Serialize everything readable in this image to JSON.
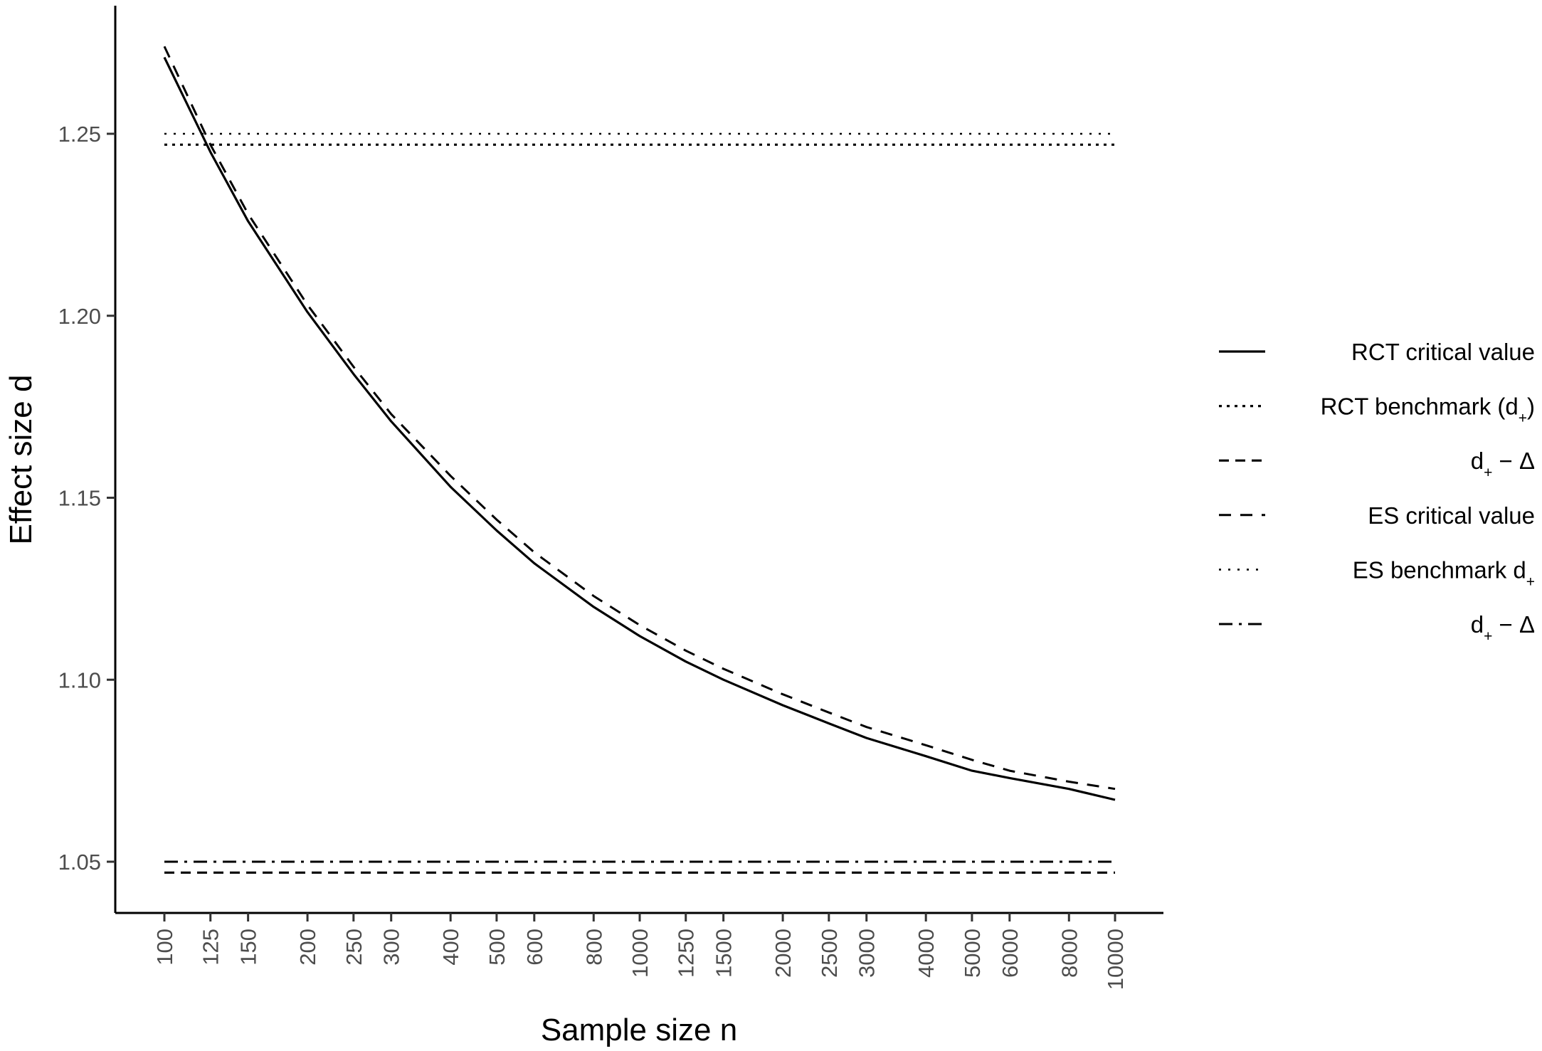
{
  "chart_data": {
    "type": "line",
    "title": "",
    "xlabel": "Sample size n",
    "ylabel": "Effect size d",
    "x_scale": "log",
    "xlim": [
      85,
      14000
    ],
    "ylim": [
      1.036,
      1.285
    ],
    "x_ticks": [
      100,
      125,
      150,
      200,
      250,
      300,
      400,
      500,
      600,
      800,
      1000,
      1250,
      1500,
      2000,
      2500,
      3000,
      4000,
      5000,
      6000,
      8000,
      10000
    ],
    "x_tick_labels": [
      "100",
      "125",
      "150",
      "200",
      "250",
      "300",
      "400",
      "500",
      "600",
      "800",
      "1000",
      "1250",
      "1500",
      "2000",
      "2500",
      "3000",
      "4000",
      "5000",
      "6000",
      "8000",
      "10000"
    ],
    "y_ticks": [
      1.05,
      1.1,
      1.15,
      1.2,
      1.25
    ],
    "y_tick_labels": [
      "1.05",
      "1.10",
      "1.15",
      "1.20",
      "1.25"
    ],
    "grid": false,
    "legend_position": "right",
    "series": [
      {
        "key": "rct_critical",
        "name": "RCT critical value",
        "style": "solid",
        "x": [
          100,
          125,
          150,
          200,
          250,
          300,
          400,
          500,
          600,
          800,
          1000,
          1250,
          1500,
          2000,
          2500,
          3000,
          4000,
          5000,
          6000,
          8000,
          10000
        ],
        "y": [
          1.271,
          1.245,
          1.226,
          1.201,
          1.184,
          1.171,
          1.153,
          1.141,
          1.132,
          1.12,
          1.112,
          1.105,
          1.1,
          1.093,
          1.088,
          1.084,
          1.079,
          1.075,
          1.073,
          1.07,
          1.067
        ]
      },
      {
        "key": "rct_benchmark",
        "name": "RCT benchmark (d+)",
        "name_parts": [
          "RCT benchmark (d",
          "+",
          ")"
        ],
        "style": "dotted-dense",
        "x": [
          100,
          10000
        ],
        "y": [
          1.247,
          1.247
        ]
      },
      {
        "key": "rct_delta",
        "name": "d+ − Δ",
        "name_parts": [
          "d",
          "+",
          " − Δ"
        ],
        "style": "dashed-long",
        "x": [
          100,
          10000
        ],
        "y": [
          1.047,
          1.047
        ]
      },
      {
        "key": "es_critical",
        "name": "ES critical value",
        "style": "dashed",
        "x": [
          100,
          125,
          150,
          200,
          250,
          300,
          400,
          500,
          600,
          800,
          1000,
          1250,
          1500,
          2000,
          2500,
          3000,
          4000,
          5000,
          6000,
          8000,
          10000
        ],
        "y": [
          1.274,
          1.247,
          1.228,
          1.203,
          1.186,
          1.173,
          1.156,
          1.144,
          1.135,
          1.123,
          1.115,
          1.108,
          1.103,
          1.096,
          1.091,
          1.087,
          1.082,
          1.078,
          1.075,
          1.072,
          1.07
        ]
      },
      {
        "key": "es_benchmark",
        "name": "ES benchmark d+",
        "name_parts": [
          "ES benchmark d",
          "+",
          ""
        ],
        "style": "dotted-sparse",
        "x": [
          100,
          10000
        ],
        "y": [
          1.25,
          1.25
        ]
      },
      {
        "key": "es_delta",
        "name": "d+ − Δ",
        "name_parts": [
          "d",
          "+",
          " − Δ"
        ],
        "style": "dashdot",
        "x": [
          100,
          10000
        ],
        "y": [
          1.05,
          1.05
        ]
      }
    ]
  }
}
